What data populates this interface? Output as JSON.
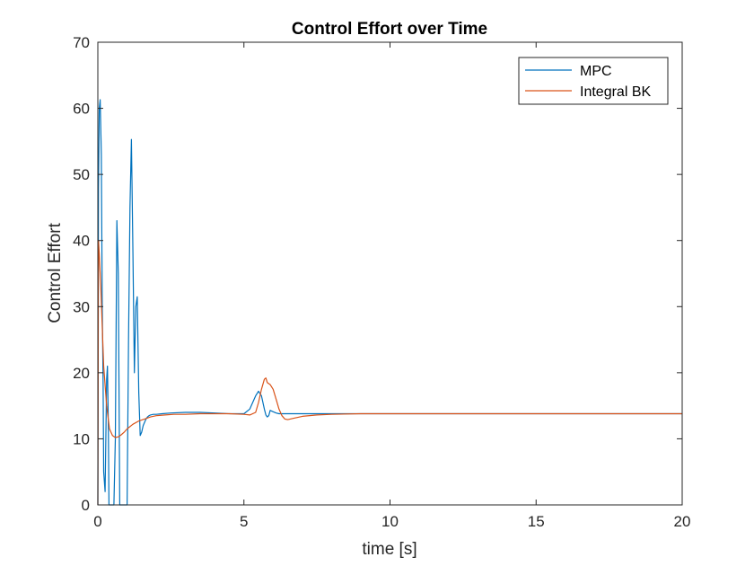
{
  "chart_data": {
    "type": "line",
    "title": "Control Effort over Time",
    "xlabel": "time [s]",
    "ylabel": "Control Effort",
    "xlim": [
      0,
      20
    ],
    "ylim": [
      0,
      70
    ],
    "xticks": [
      0,
      5,
      10,
      15,
      20
    ],
    "yticks": [
      0,
      10,
      20,
      30,
      40,
      50,
      60,
      70
    ],
    "grid": false,
    "legend_position": "top-right",
    "series": [
      {
        "name": "MPC",
        "color": "#0072BD",
        "x": [
          0,
          0.02,
          0.05,
          0.08,
          0.12,
          0.15,
          0.18,
          0.2,
          0.25,
          0.3,
          0.33,
          0.36,
          0.38,
          0.42,
          0.45,
          0.5,
          0.55,
          0.6,
          0.65,
          0.7,
          0.75,
          0.8,
          0.85,
          0.9,
          0.95,
          1.0,
          1.05,
          1.1,
          1.15,
          1.2,
          1.25,
          1.3,
          1.35,
          1.4,
          1.45,
          1.5,
          1.55,
          1.6,
          1.65,
          1.7,
          1.75,
          1.8,
          1.9,
          2.0,
          2.2,
          2.5,
          3.0,
          3.5,
          4.0,
          4.5,
          5.0,
          5.2,
          5.4,
          5.5,
          5.6,
          5.7,
          5.75,
          5.8,
          5.85,
          5.9,
          6.0,
          6.1,
          6.2,
          6.3,
          6.5,
          7.0,
          8.0,
          10.0,
          12.0,
          15.0,
          18.0,
          20.0
        ],
        "y": [
          0,
          48,
          60,
          61.3,
          53,
          30,
          18,
          5,
          2,
          19,
          21,
          12,
          0,
          0,
          0,
          0,
          0,
          10,
          43,
          35,
          0,
          0,
          0,
          0,
          0,
          0,
          25,
          45,
          55.3,
          38,
          20,
          30,
          31.5,
          17,
          10.5,
          11,
          12,
          12.5,
          13,
          13.3,
          13.5,
          13.6,
          13.7,
          13.7,
          13.8,
          13.9,
          14.0,
          14.0,
          13.9,
          13.8,
          13.8,
          14.5,
          16.5,
          17.2,
          16.5,
          14.5,
          13.6,
          13.3,
          13.5,
          14.3,
          14.1,
          13.9,
          13.8,
          13.8,
          13.8,
          13.8,
          13.8,
          13.8,
          13.8,
          13.8,
          13.8,
          13.8
        ]
      },
      {
        "name": "Integral BK",
        "color": "#D95319",
        "x": [
          0,
          0.02,
          0.05,
          0.1,
          0.15,
          0.2,
          0.3,
          0.4,
          0.5,
          0.6,
          0.7,
          0.8,
          0.9,
          1.0,
          1.2,
          1.4,
          1.6,
          1.8,
          2.0,
          2.3,
          2.6,
          3.0,
          3.5,
          4.0,
          4.5,
          5.0,
          5.2,
          5.4,
          5.5,
          5.6,
          5.7,
          5.75,
          5.8,
          5.9,
          6.0,
          6.1,
          6.2,
          6.3,
          6.4,
          6.5,
          6.7,
          7.0,
          7.5,
          8.0,
          9.0,
          10.0,
          12.0,
          15.0,
          18.0,
          20.0
        ],
        "y": [
          0,
          40,
          38,
          33,
          27,
          21,
          15,
          11.5,
          10.5,
          10.2,
          10.3,
          10.6,
          11.0,
          11.5,
          12.2,
          12.7,
          13.0,
          13.3,
          13.5,
          13.6,
          13.7,
          13.7,
          13.8,
          13.8,
          13.8,
          13.7,
          13.6,
          14.0,
          15.5,
          17.5,
          19.0,
          19.2,
          18.5,
          18.2,
          17.5,
          16.0,
          14.5,
          13.5,
          13.0,
          12.9,
          13.1,
          13.4,
          13.6,
          13.7,
          13.8,
          13.8,
          13.8,
          13.8,
          13.8,
          13.8
        ]
      }
    ]
  }
}
